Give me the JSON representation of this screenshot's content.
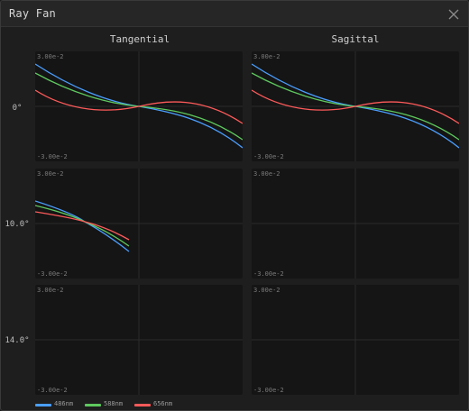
{
  "window": {
    "title": "Ray Fan"
  },
  "columns": [
    "Tangential",
    "Sagittal"
  ],
  "rows": [
    {
      "label": "0°"
    },
    {
      "label": "10.0°"
    },
    {
      "label": "14.0°"
    }
  ],
  "axis": {
    "ymax_label": "3.00e-2",
    "ymin_label": "-3.00e-2"
  },
  "legend": [
    {
      "label": "486nm",
      "color": "#4a9eff"
    },
    {
      "label": "588nm",
      "color": "#5ec95e"
    },
    {
      "label": "656nm",
      "color": "#ff5a5a"
    }
  ],
  "colors": {
    "grid": "#2b2b2b",
    "panel": "#151515"
  }
}
